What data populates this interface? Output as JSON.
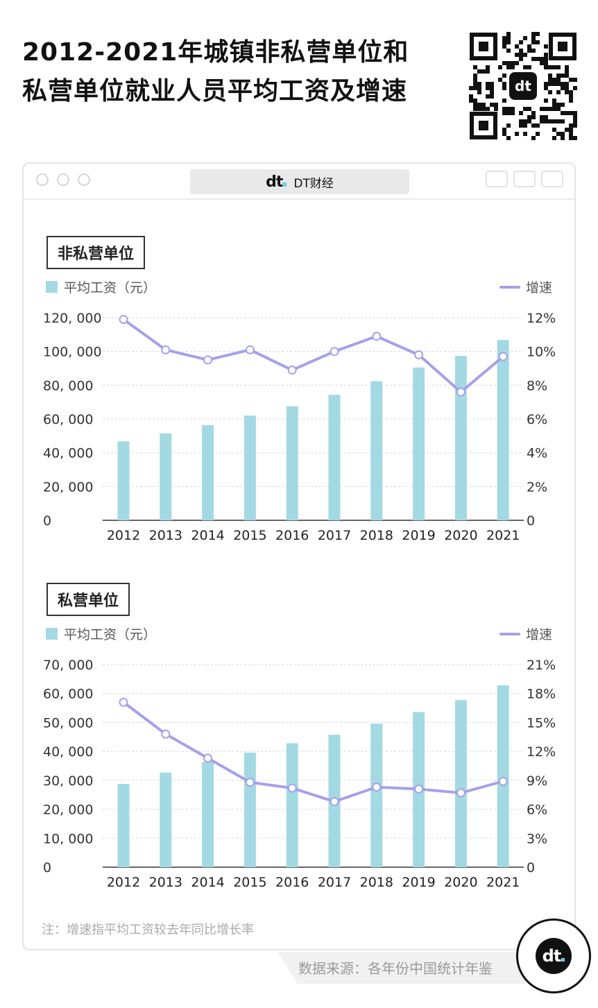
{
  "title_line1": "2012-2021年城镇非私营单位和",
  "title_line2": "私营单位就业人员平均工资及增速",
  "window": {
    "tab_title": "DT财经"
  },
  "legend": {
    "bar": "平均工资（元）",
    "line": "增速"
  },
  "colors": {
    "bar": "#a3d9e2",
    "line": "#a6a0ea",
    "marker_fill": "#ffffff"
  },
  "note": "注：增速指平均工资较去年同比增长率",
  "source": "数据来源：各年份中国统计年鉴",
  "chart_data": [
    {
      "type": "bar",
      "title": "非私营单位",
      "categories": [
        "2012",
        "2013",
        "2014",
        "2015",
        "2016",
        "2017",
        "2018",
        "2019",
        "2020",
        "2021"
      ],
      "series": [
        {
          "name": "平均工资（元）",
          "type": "bar",
          "axis": "left",
          "values": [
            46769,
            51483,
            56360,
            62029,
            67569,
            74318,
            82413,
            90501,
            97379,
            106837
          ]
        },
        {
          "name": "增速",
          "type": "line",
          "axis": "right",
          "values": [
            11.9,
            10.1,
            9.5,
            10.1,
            8.9,
            10.0,
            10.9,
            9.8,
            7.6,
            9.7
          ]
        }
      ],
      "y_left": {
        "min": 0,
        "max": 120000,
        "ticks": [
          "0",
          "20, 000",
          "40, 000",
          "60, 000",
          "80, 000",
          "100, 000",
          "120, 000"
        ]
      },
      "y_right": {
        "min": 0,
        "max": 12,
        "ticks": [
          "0",
          "2%",
          "4%",
          "6%",
          "8%",
          "10%",
          "12%"
        ]
      },
      "grid": true,
      "legend_position": "top"
    },
    {
      "type": "bar",
      "title": "私营单位",
      "categories": [
        "2012",
        "2013",
        "2014",
        "2015",
        "2016",
        "2017",
        "2018",
        "2019",
        "2020",
        "2021"
      ],
      "series": [
        {
          "name": "平均工资（元）",
          "type": "bar",
          "axis": "left",
          "values": [
            28752,
            32706,
            36390,
            39589,
            42833,
            45761,
            49575,
            53604,
            57727,
            62884
          ]
        },
        {
          "name": "增速",
          "type": "line",
          "axis": "right",
          "values": [
            17.1,
            13.8,
            11.3,
            8.8,
            8.2,
            6.8,
            8.3,
            8.1,
            7.7,
            8.9
          ]
        }
      ],
      "y_left": {
        "min": 0,
        "max": 70000,
        "ticks": [
          "0",
          "10, 000",
          "20, 000",
          "30, 000",
          "40, 000",
          "50, 000",
          "60, 000",
          "70, 000"
        ]
      },
      "y_right": {
        "min": 0,
        "max": 21,
        "ticks": [
          "0",
          "3%",
          "6%",
          "9%",
          "12%",
          "15%",
          "18%",
          "21%"
        ]
      },
      "grid": true,
      "legend_position": "top"
    }
  ]
}
